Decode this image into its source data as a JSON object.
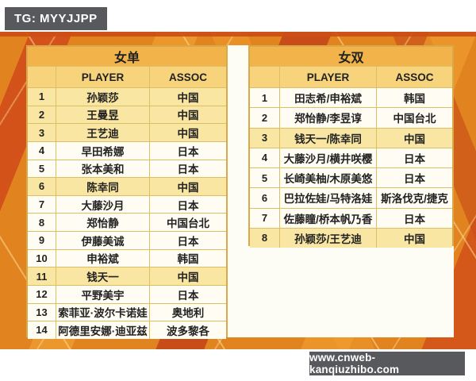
{
  "badges": {
    "tg": "TG: MYYJJPP",
    "watermark": "www.cnweb-kanqiuzhibo.com"
  },
  "colors": {
    "background_orange": "#e1831e",
    "stripe_red": "#d14a1a",
    "stripe_light": "#f09e30",
    "title_bg": "#f2b44a",
    "header_bg": "#f7d47c",
    "highlight_row": "#f9e6a2",
    "row_bg": "#fffdf3",
    "badge_bg": "#58595c"
  },
  "women_singles": {
    "title": "女单",
    "columns": {
      "player": "PLAYER",
      "assoc": "ASSOC"
    },
    "rows": [
      {
        "rank": "1",
        "player": "孙颖莎",
        "assoc": "中国",
        "highlight": true
      },
      {
        "rank": "2",
        "player": "王曼昱",
        "assoc": "中国",
        "highlight": true
      },
      {
        "rank": "3",
        "player": "王艺迪",
        "assoc": "中国",
        "highlight": true
      },
      {
        "rank": "4",
        "player": "早田希娜",
        "assoc": "日本",
        "highlight": false
      },
      {
        "rank": "5",
        "player": "张本美和",
        "assoc": "日本",
        "highlight": false
      },
      {
        "rank": "6",
        "player": "陈幸同",
        "assoc": "中国",
        "highlight": true
      },
      {
        "rank": "7",
        "player": "大藤沙月",
        "assoc": "日本",
        "highlight": false
      },
      {
        "rank": "8",
        "player": "郑怡静",
        "assoc": "中国台北",
        "highlight": false
      },
      {
        "rank": "9",
        "player": "伊藤美诚",
        "assoc": "日本",
        "highlight": false
      },
      {
        "rank": "10",
        "player": "申裕斌",
        "assoc": "韩国",
        "highlight": false
      },
      {
        "rank": "11",
        "player": "钱天一",
        "assoc": "中国",
        "highlight": true
      },
      {
        "rank": "12",
        "player": "平野美宇",
        "assoc": "日本",
        "highlight": false
      },
      {
        "rank": "13",
        "player": "索菲亚·波尔卡诺娃",
        "assoc": "奥地利",
        "highlight": false
      },
      {
        "rank": "14",
        "player": "阿德里安娜·迪亚兹",
        "assoc": "波多黎各",
        "highlight": false
      }
    ]
  },
  "women_doubles": {
    "title": "女双",
    "columns": {
      "player": "PLAYER",
      "assoc": "ASSOC"
    },
    "rows": [
      {
        "rank": "1",
        "player": "田志希/申裕斌",
        "assoc": "韩国",
        "highlight": false
      },
      {
        "rank": "2",
        "player": "郑怡静/李昱谆",
        "assoc": "中国台北",
        "highlight": false
      },
      {
        "rank": "3",
        "player": "钱天一/陈幸同",
        "assoc": "中国",
        "highlight": true
      },
      {
        "rank": "4",
        "player": "大藤沙月/横井咲樱",
        "assoc": "日本",
        "highlight": false
      },
      {
        "rank": "5",
        "player": "长崎美柚/木原美悠",
        "assoc": "日本",
        "highlight": false
      },
      {
        "rank": "6",
        "player": "巴拉佐娃/马特洛娃",
        "assoc": "斯洛伐克/捷克",
        "highlight": false
      },
      {
        "rank": "7",
        "player": "佐藤瞳/桥本帆乃香",
        "assoc": "日本",
        "highlight": false
      },
      {
        "rank": "8",
        "player": "孙颖莎/王艺迪",
        "assoc": "中国",
        "highlight": true
      }
    ]
  }
}
